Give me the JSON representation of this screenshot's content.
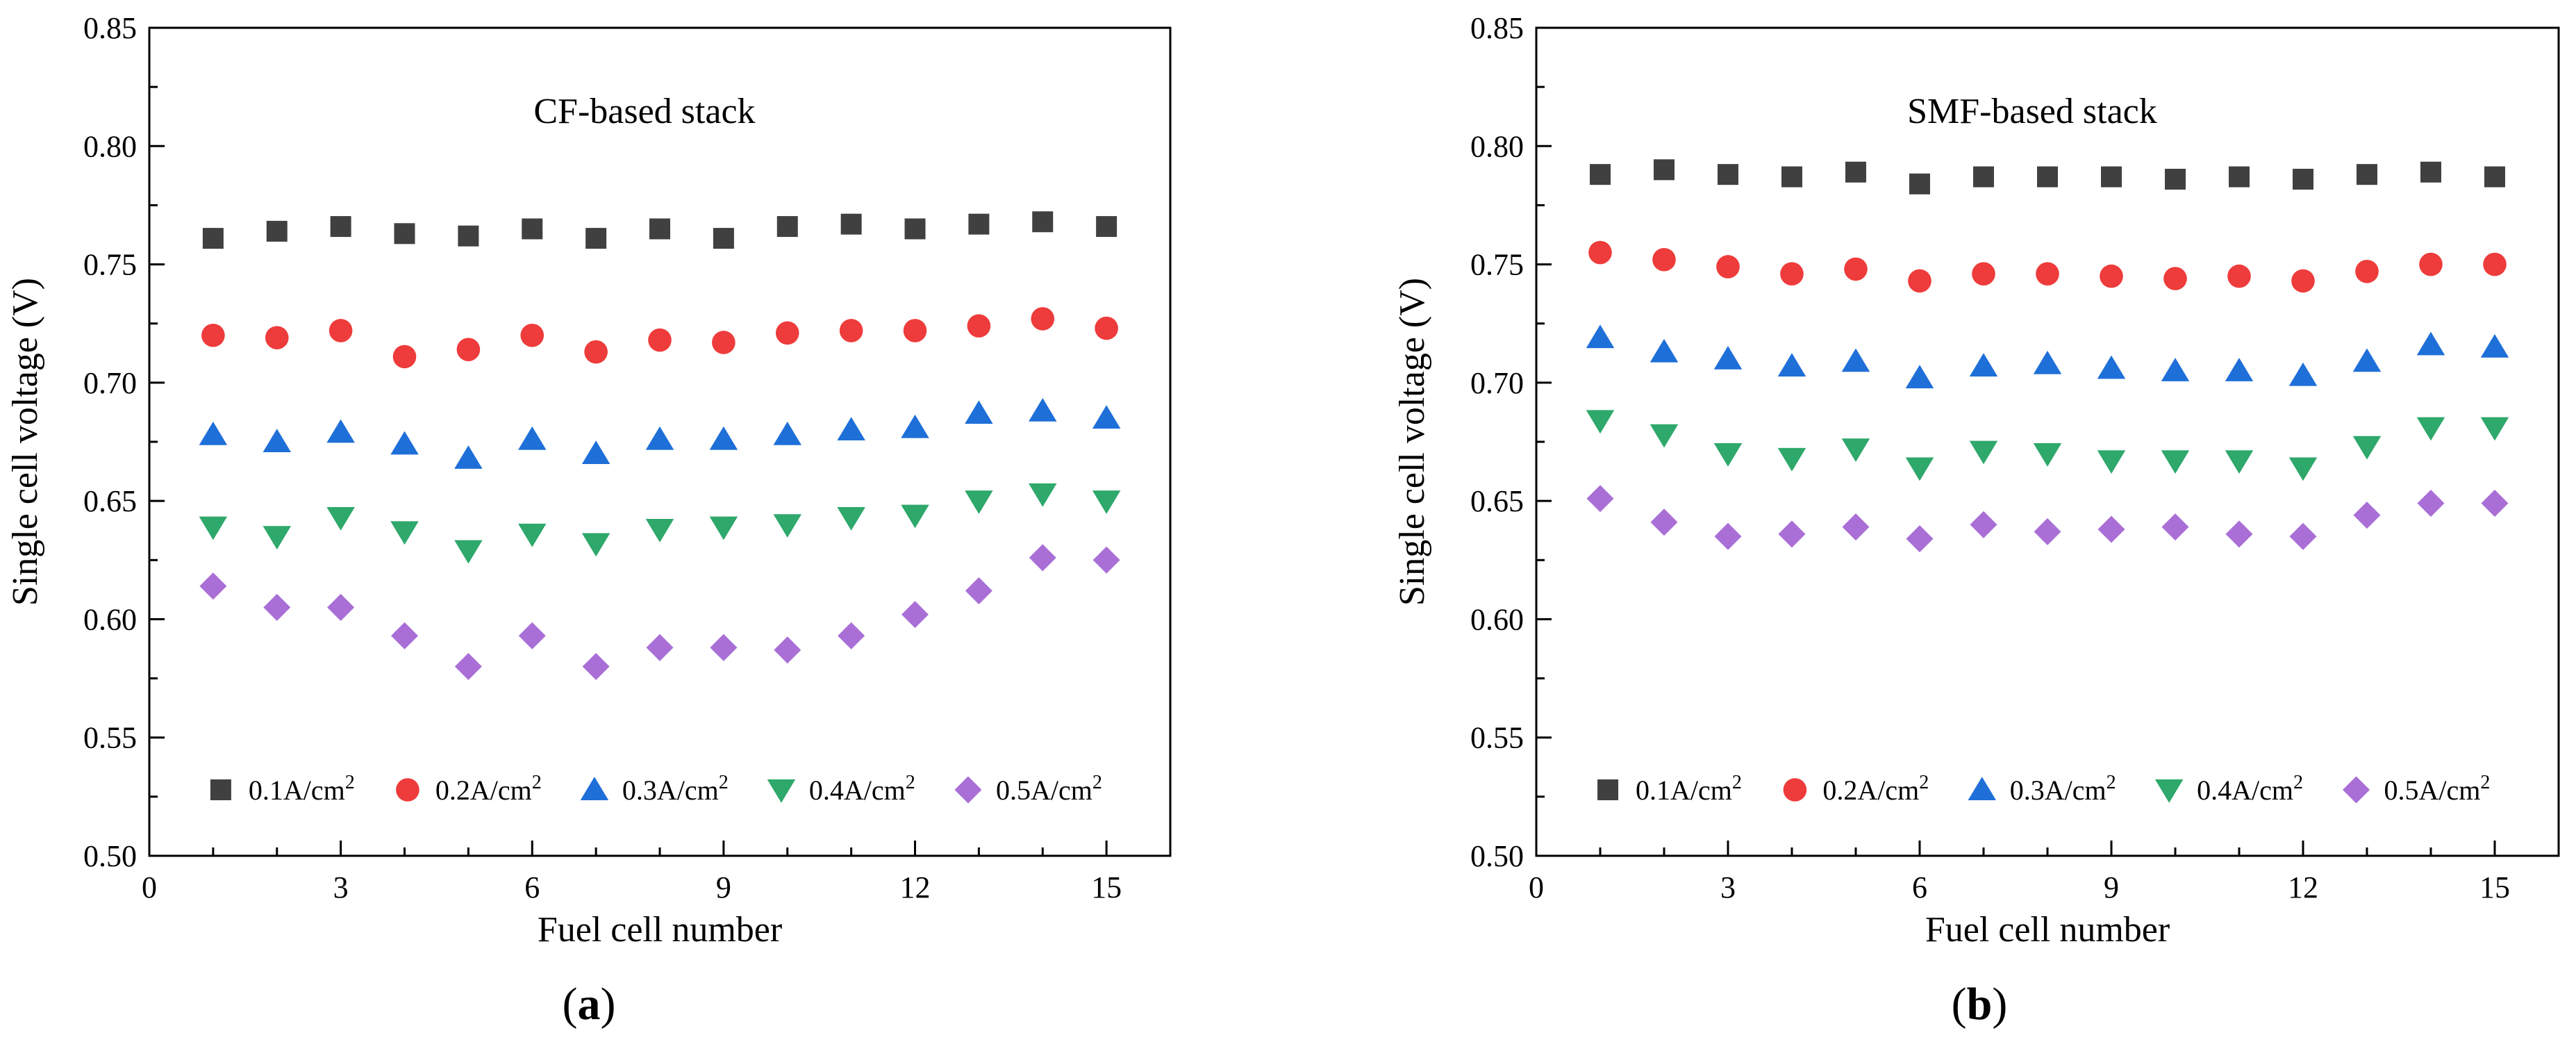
{
  "panels": [
    {
      "caption": "a",
      "title": "CF-based stack"
    },
    {
      "caption": "b",
      "title": "SMF-based stack"
    }
  ],
  "chart_data": [
    {
      "type": "scatter",
      "title": "CF-based stack",
      "xlabel": "Fuel cell number",
      "ylabel": "Single cell voltage (V)",
      "xlim": [
        0,
        16
      ],
      "ylim": [
        0.5,
        0.85
      ],
      "xticks": [
        "0",
        "3",
        "6",
        "9",
        "12",
        "15"
      ],
      "yticks": [
        "0.50",
        "0.55",
        "0.60",
        "0.65",
        "0.70",
        "0.75",
        "0.80",
        "0.85"
      ],
      "legend_position": "bottom",
      "x": [
        1,
        2,
        3,
        4,
        5,
        6,
        7,
        8,
        9,
        10,
        11,
        12,
        13,
        14,
        15
      ],
      "series": [
        {
          "name": "0.1A/cm2",
          "label": "0.1A/cm",
          "sup": "2",
          "marker": "square",
          "color": "#404040",
          "values": [
            0.761,
            0.764,
            0.766,
            0.763,
            0.762,
            0.765,
            0.761,
            0.765,
            0.761,
            0.766,
            0.767,
            0.765,
            0.767,
            0.768,
            0.766
          ]
        },
        {
          "name": "0.2A/cm2",
          "label": "0.2A/cm",
          "sup": "2",
          "marker": "circle",
          "color": "#ee3b3b",
          "values": [
            0.72,
            0.719,
            0.722,
            0.711,
            0.714,
            0.72,
            0.713,
            0.718,
            0.717,
            0.721,
            0.722,
            0.722,
            0.724,
            0.727,
            0.723
          ]
        },
        {
          "name": "0.3A/cm2",
          "label": "0.3A/cm",
          "sup": "2",
          "marker": "triangle-up",
          "color": "#1f6fd8",
          "values": [
            0.678,
            0.675,
            0.679,
            0.674,
            0.668,
            0.676,
            0.67,
            0.676,
            0.676,
            0.678,
            0.68,
            0.681,
            0.687,
            0.688,
            0.685
          ]
        },
        {
          "name": "0.4A/cm2",
          "label": "0.4A/cm",
          "sup": "2",
          "marker": "triangle-down",
          "color": "#2ea86b",
          "values": [
            0.639,
            0.635,
            0.643,
            0.637,
            0.629,
            0.636,
            0.632,
            0.638,
            0.639,
            0.64,
            0.643,
            0.644,
            0.65,
            0.653,
            0.65
          ]
        },
        {
          "name": "0.5A/cm2",
          "label": "0.5A/cm",
          "sup": "2",
          "marker": "diamond",
          "color": "#a96fd6",
          "values": [
            0.614,
            0.605,
            0.605,
            0.593,
            0.58,
            0.593,
            0.58,
            0.588,
            0.588,
            0.587,
            0.593,
            0.602,
            0.612,
            0.626,
            0.625
          ]
        }
      ]
    },
    {
      "type": "scatter",
      "title": "SMF-based stack",
      "xlabel": "Fuel cell number",
      "ylabel": "Single cell voltage (V)",
      "xlim": [
        0,
        16
      ],
      "ylim": [
        0.5,
        0.85
      ],
      "xticks": [
        "0",
        "3",
        "6",
        "9",
        "12",
        "15"
      ],
      "yticks": [
        "0.50",
        "0.55",
        "0.60",
        "0.65",
        "0.70",
        "0.75",
        "0.80",
        "0.85"
      ],
      "legend_position": "bottom",
      "x": [
        1,
        2,
        3,
        4,
        5,
        6,
        7,
        8,
        9,
        10,
        11,
        12,
        13,
        14,
        15
      ],
      "series": [
        {
          "name": "0.1A/cm2",
          "label": "0.1A/cm",
          "sup": "2",
          "marker": "square",
          "color": "#404040",
          "values": [
            0.788,
            0.79,
            0.788,
            0.787,
            0.789,
            0.784,
            0.787,
            0.787,
            0.787,
            0.786,
            0.787,
            0.786,
            0.788,
            0.789,
            0.787
          ]
        },
        {
          "name": "0.2A/cm2",
          "label": "0.2A/cm",
          "sup": "2",
          "marker": "circle",
          "color": "#ee3b3b",
          "values": [
            0.755,
            0.752,
            0.749,
            0.746,
            0.748,
            0.743,
            0.746,
            0.746,
            0.745,
            0.744,
            0.745,
            0.743,
            0.747,
            0.75,
            0.75
          ]
        },
        {
          "name": "0.3A/cm2",
          "label": "0.3A/cm",
          "sup": "2",
          "marker": "triangle-up",
          "color": "#1f6fd8",
          "values": [
            0.719,
            0.713,
            0.71,
            0.707,
            0.709,
            0.702,
            0.707,
            0.708,
            0.706,
            0.705,
            0.705,
            0.703,
            0.709,
            0.716,
            0.715
          ]
        },
        {
          "name": "0.4A/cm2",
          "label": "0.4A/cm",
          "sup": "2",
          "marker": "triangle-down",
          "color": "#2ea86b",
          "values": [
            0.684,
            0.678,
            0.67,
            0.668,
            0.672,
            0.664,
            0.671,
            0.67,
            0.667,
            0.667,
            0.667,
            0.664,
            0.673,
            0.681,
            0.681
          ]
        },
        {
          "name": "0.5A/cm2",
          "label": "0.5A/cm",
          "sup": "2",
          "marker": "diamond",
          "color": "#a96fd6",
          "values": [
            0.651,
            0.641,
            0.635,
            0.636,
            0.639,
            0.634,
            0.64,
            0.637,
            0.638,
            0.639,
            0.636,
            0.635,
            0.644,
            0.649,
            0.649
          ]
        }
      ]
    }
  ]
}
